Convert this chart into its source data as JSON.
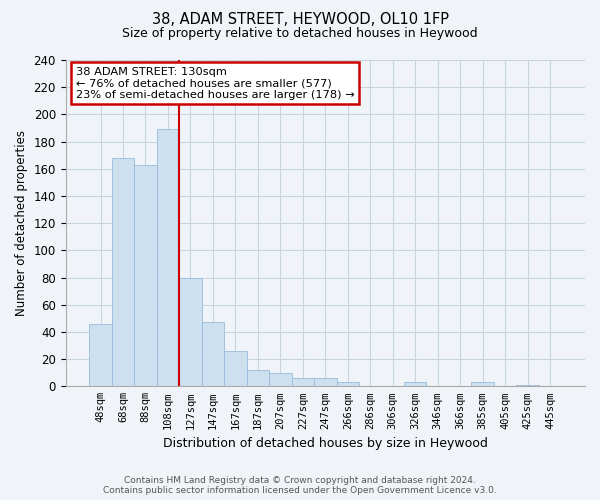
{
  "title": "38, ADAM STREET, HEYWOOD, OL10 1FP",
  "subtitle": "Size of property relative to detached houses in Heywood",
  "xlabel": "Distribution of detached houses by size in Heywood",
  "ylabel": "Number of detached properties",
  "bar_labels": [
    "48sqm",
    "68sqm",
    "88sqm",
    "108sqm",
    "127sqm",
    "147sqm",
    "167sqm",
    "187sqm",
    "207sqm",
    "227sqm",
    "247sqm",
    "266sqm",
    "286sqm",
    "306sqm",
    "326sqm",
    "346sqm",
    "366sqm",
    "385sqm",
    "405sqm",
    "425sqm",
    "445sqm"
  ],
  "bar_heights": [
    46,
    168,
    163,
    189,
    80,
    47,
    26,
    12,
    10,
    6,
    6,
    3,
    0,
    0,
    3,
    0,
    0,
    3,
    0,
    1,
    0
  ],
  "bar_color": "#cce0f0",
  "bar_edge_color": "#99bbdd",
  "vline_color": "#cc0000",
  "annotation_title": "38 ADAM STREET: 130sqm",
  "annotation_line1": "← 76% of detached houses are smaller (577)",
  "annotation_line2": "23% of semi-detached houses are larger (178) →",
  "annotation_box_color": "#ffffff",
  "annotation_box_edge": "#cc0000",
  "footer_line1": "Contains HM Land Registry data © Crown copyright and database right 2024.",
  "footer_line2": "Contains public sector information licensed under the Open Government Licence v3.0.",
  "ylim": [
    0,
    240
  ],
  "yticks": [
    0,
    20,
    40,
    60,
    80,
    100,
    120,
    140,
    160,
    180,
    200,
    220,
    240
  ],
  "fig_width": 6.0,
  "fig_height": 5.0,
  "dpi": 100,
  "bg_color": "#f0f4f8",
  "plot_bg_color": "#f0f4f8"
}
